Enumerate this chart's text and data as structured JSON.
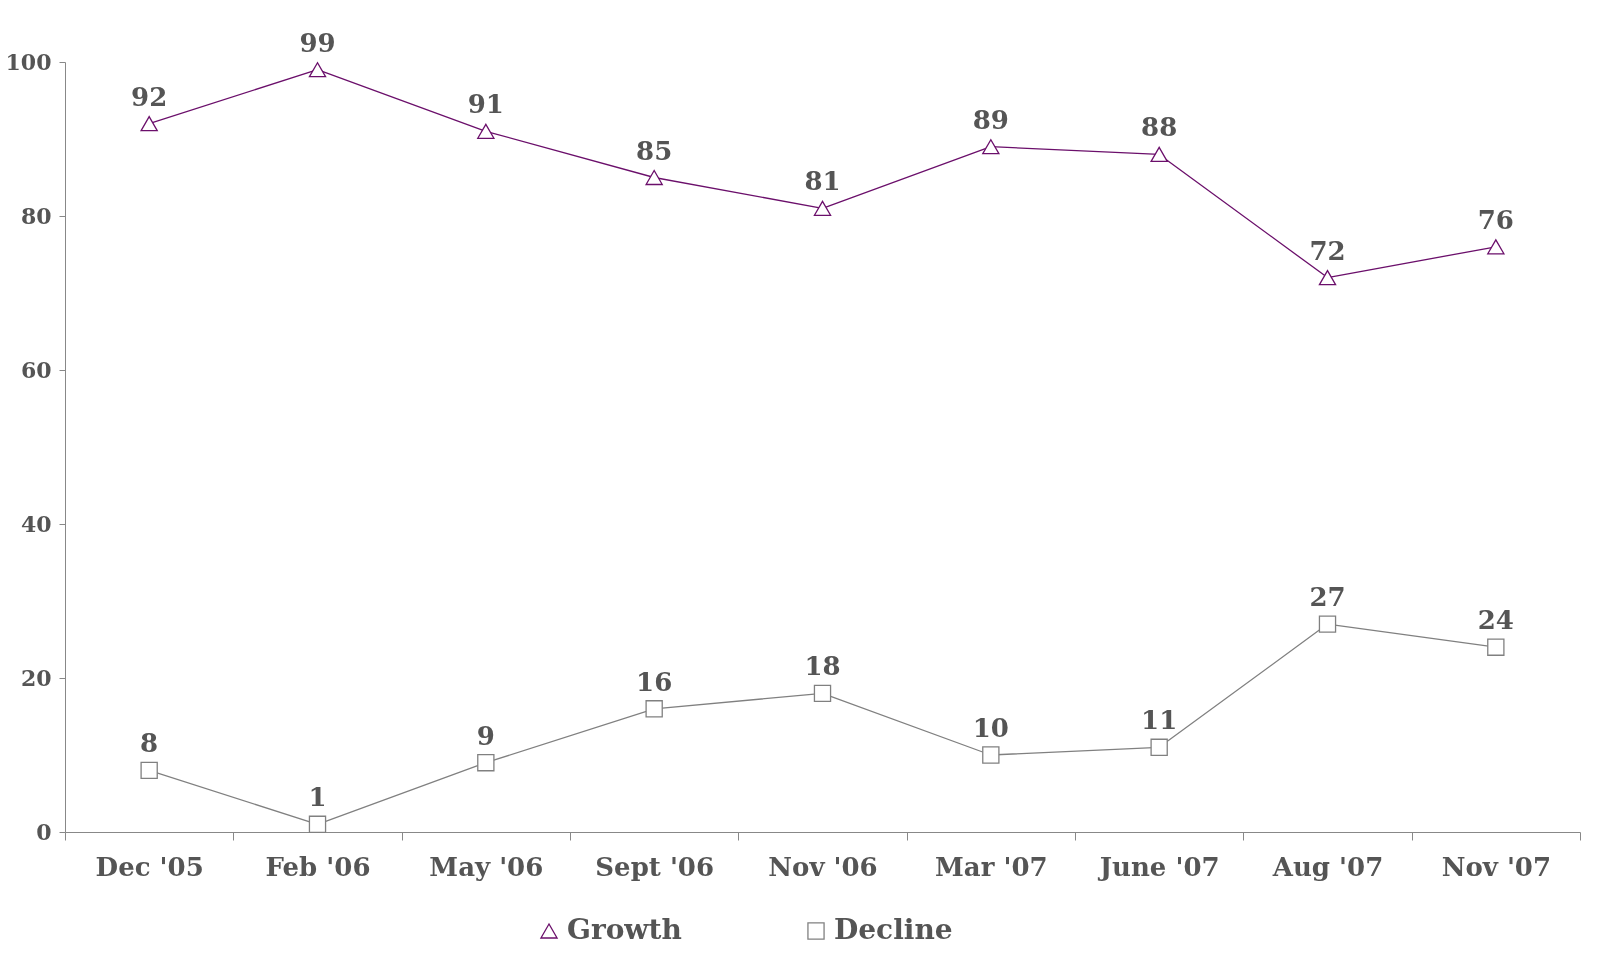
{
  "chart_data": {
    "type": "line",
    "categories": [
      "Dec '05",
      "Feb '06",
      "May '06",
      "Sept '06",
      "Nov '06",
      "Mar '07",
      "June '07",
      "Aug '07",
      "Nov '07"
    ],
    "series": [
      {
        "name": "Growth",
        "color": "#6b0f6b",
        "marker": "triangle",
        "values": [
          92,
          99,
          91,
          85,
          81,
          89,
          88,
          72,
          76
        ]
      },
      {
        "name": "Decline",
        "color": "#808080",
        "marker": "square",
        "values": [
          8,
          1,
          9,
          16,
          18,
          10,
          11,
          27,
          24
        ]
      }
    ],
    "ylim": [
      0,
      100
    ],
    "yticks": [
      0,
      20,
      40,
      60,
      80,
      100
    ],
    "grid": false,
    "legend": "bottom",
    "data_labels": true,
    "line_style": "solid"
  }
}
